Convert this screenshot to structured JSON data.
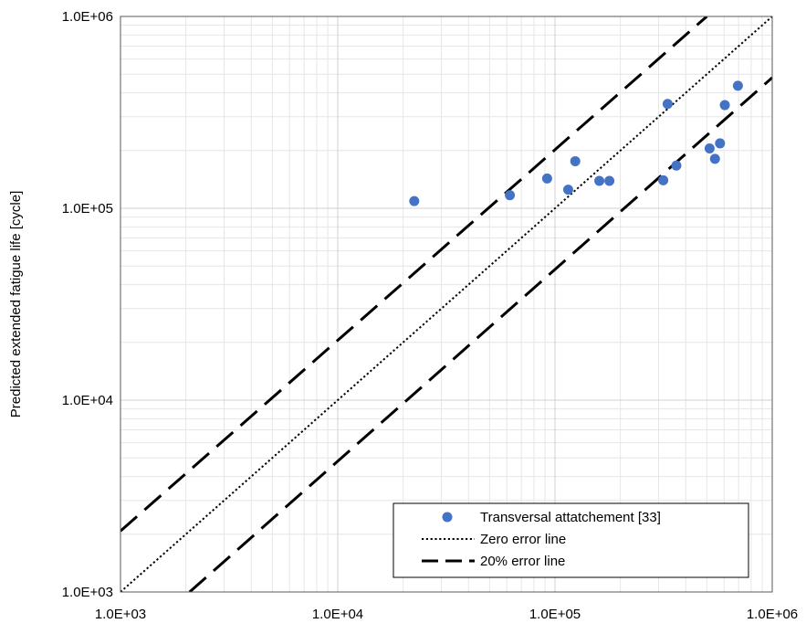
{
  "chart_data": {
    "type": "scatter",
    "title": "",
    "xlabel": "",
    "ylabel": "Predicted extended fatigue life [cycle]",
    "x_scale": "log",
    "y_scale": "log",
    "xlim": [
      1000,
      1000000
    ],
    "ylim": [
      1000,
      1000000
    ],
    "grid": true,
    "legend_position": "bottom-right",
    "x_ticks": [
      "1.0E+03",
      "1.0E+04",
      "1.0E+05",
      "1.0E+06"
    ],
    "y_ticks": [
      "1.0E+03",
      "1.0E+04",
      "1.0E+05",
      "1.0E+06"
    ],
    "series": [
      {
        "name": "Transversal attatchement [33]",
        "kind": "points",
        "color": "#4472C4",
        "x": [
          22500,
          62000,
          92000,
          115000,
          124000,
          160000,
          178000,
          315000,
          330000,
          362000,
          515000,
          545000,
          575000,
          605000,
          695000
        ],
        "y": [
          109000,
          117000,
          143000,
          125000,
          176000,
          139000,
          139000,
          140000,
          350000,
          167000,
          205000,
          181000,
          218000,
          345000,
          435000
        ]
      },
      {
        "name": "Zero error line",
        "kind": "line",
        "style": "dotted",
        "color": "#000000",
        "x": [
          1000,
          1000000
        ],
        "y": [
          1000,
          1000000
        ]
      },
      {
        "name": "20% error line",
        "kind": "line",
        "style": "dashed",
        "color": "#000000",
        "segments": [
          {
            "x": [
              1000,
              500000
            ],
            "y": [
              2080,
              1000000
            ]
          },
          {
            "x": [
              2080,
              1000000
            ],
            "y": [
              1000,
              480000
            ]
          }
        ]
      }
    ]
  }
}
